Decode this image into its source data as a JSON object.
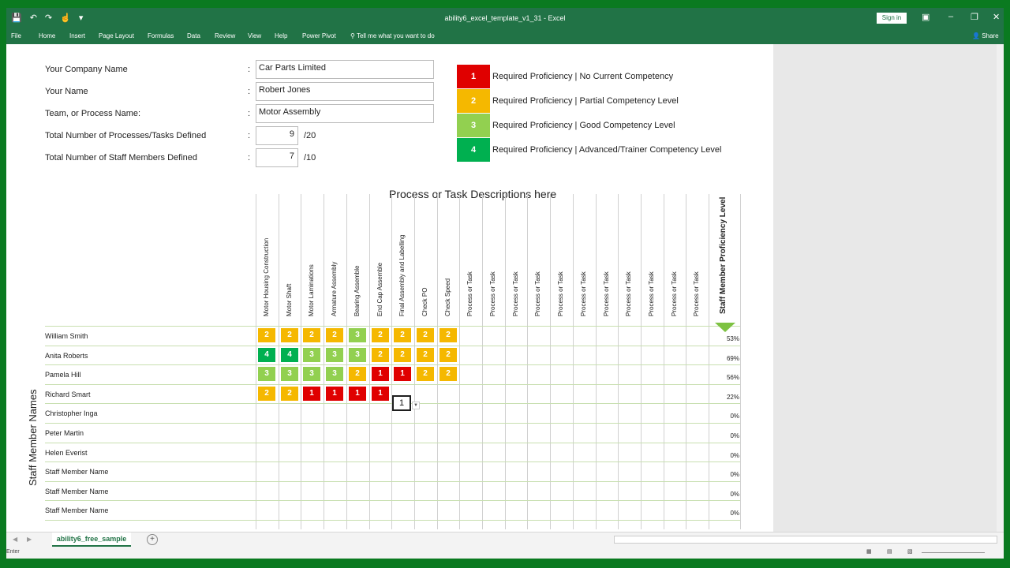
{
  "window": {
    "title": "ability6_excel_template_v1_31 - Excel",
    "signin": "Sign in",
    "share": "Share",
    "tell_me": "Tell me what you want to do"
  },
  "ribbon_tabs": [
    "File",
    "Home",
    "Insert",
    "Page Layout",
    "Formulas",
    "Data",
    "Review",
    "View",
    "Help",
    "Power Pivot"
  ],
  "form": {
    "company_label": "Your Company Name",
    "company_value": "Car Parts Limited",
    "name_label": "Your Name",
    "name_value": "Robert Jones",
    "team_label": "Team, or Process Name:",
    "team_value": "Motor Assembly",
    "processes_label": "Total Number of Processes/Tasks Defined",
    "processes_value": "9",
    "processes_max": "/20",
    "staff_label": "Total Number of Staff Members Defined",
    "staff_value": "7",
    "staff_max": "/10",
    "colon": ":"
  },
  "legend": [
    {
      "level": "1",
      "text": "Required Proficiency | No Current Competency",
      "color": "#e00000"
    },
    {
      "level": "2",
      "text": "Required Proficiency | Partial Competency Level",
      "color": "#f5b800"
    },
    {
      "level": "3",
      "text": "Required Proficiency | Good Competency Level",
      "color": "#92d050"
    },
    {
      "level": "4",
      "text": "Required Proficiency | Advanced/Trainer Competency Level",
      "color": "#00b050"
    }
  ],
  "grid": {
    "title": "Process or Task Descriptions here",
    "columns": [
      "Motor Housing Construction",
      "Motor Shaft",
      "Motor Laminations",
      "Armature Assembly",
      "Bearing Assemble",
      "End Cap Assemble",
      "Final Assembly and Labelling",
      "Check PO",
      "Check Speed",
      "Process or Task",
      "Process or Task",
      "Process or Task",
      "Process or Task",
      "Process or Task",
      "Process or Task",
      "Process or Task",
      "Process or Task",
      "Process or Task",
      "Process or Task",
      "Process or Task"
    ],
    "proficiency_header": "Staff Member Proficiency Level",
    "side_label": "Staff Member Names",
    "rows": [
      {
        "name": "William Smith",
        "levels": [
          "2",
          "2",
          "2",
          "2",
          "3",
          "2",
          "2",
          "2",
          "2"
        ],
        "pct": "53%"
      },
      {
        "name": "Anita Roberts",
        "levels": [
          "4",
          "4",
          "3",
          "3",
          "3",
          "2",
          "2",
          "2",
          "2"
        ],
        "pct": "69%"
      },
      {
        "name": "Pamela Hill",
        "levels": [
          "3",
          "3",
          "3",
          "3",
          "2",
          "1",
          "1",
          "2",
          "2"
        ],
        "pct": "56%"
      },
      {
        "name": "Richard Smart",
        "levels": [
          "2",
          "2",
          "1",
          "1",
          "1",
          "1"
        ],
        "pct": "22%"
      },
      {
        "name": "Christopher Inga",
        "levels": [],
        "pct": "0%"
      },
      {
        "name": "Peter Martin",
        "levels": [],
        "pct": "0%"
      },
      {
        "name": "Helen Everist",
        "levels": [],
        "pct": "0%"
      },
      {
        "name": "Staff Member Name",
        "levels": [],
        "pct": "0%"
      },
      {
        "name": "Staff Member Name",
        "levels": [],
        "pct": "0%"
      },
      {
        "name": "Staff Member Name",
        "levels": [],
        "pct": "0%"
      }
    ],
    "active_cell_value": "1"
  },
  "sheet_tab": "ability6_free_sample",
  "status": "Enter"
}
